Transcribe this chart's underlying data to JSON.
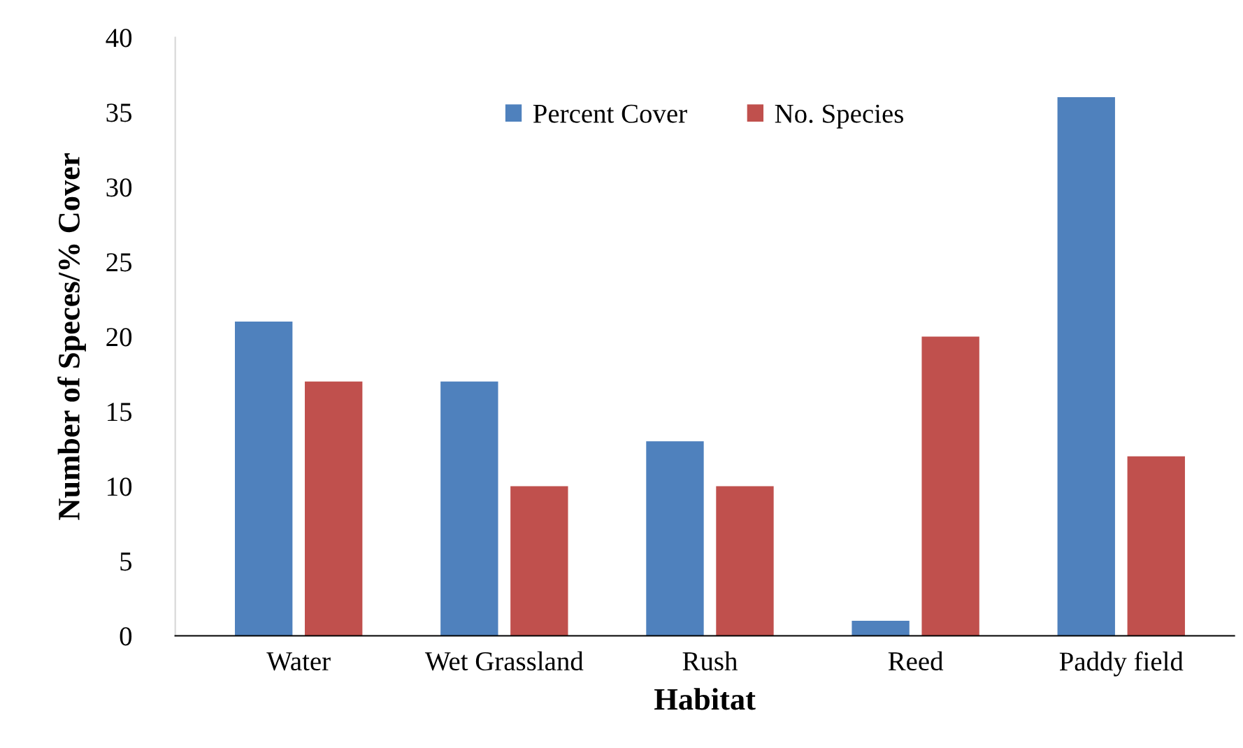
{
  "chart_data": {
    "type": "bar",
    "xlabel": "Habitat",
    "ylabel": "Number of Speces/% Cover",
    "categories": [
      "Water",
      "Wet Grassland",
      "Rush",
      "Reed",
      "Paddy field"
    ],
    "series": [
      {
        "name": "Percent Cover",
        "color": "#4f81bd",
        "values": [
          21,
          17,
          13,
          1,
          36
        ]
      },
      {
        "name": "No. Species",
        "color": "#c0504d",
        "values": [
          17,
          10,
          10,
          20,
          12
        ]
      }
    ],
    "ylim": [
      0,
      40
    ],
    "yticks": [
      0,
      5,
      10,
      15,
      20,
      25,
      30,
      35,
      40
    ],
    "grid": false,
    "legend": "top"
  }
}
